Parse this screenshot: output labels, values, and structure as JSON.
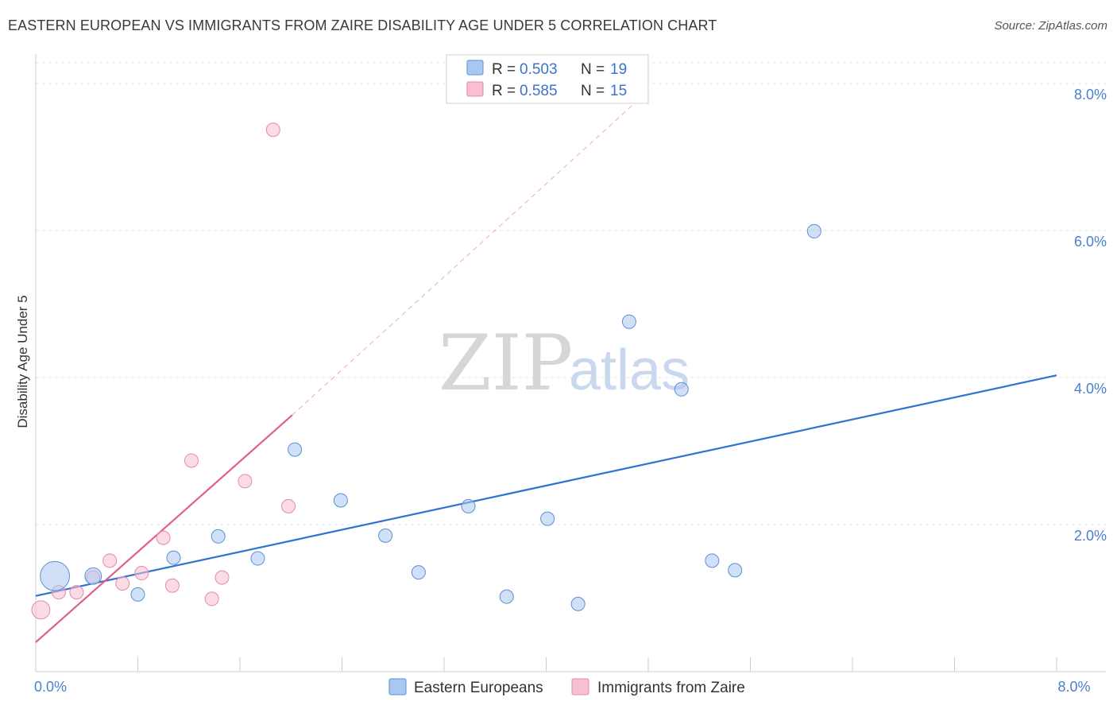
{
  "header": {
    "title": "EASTERN EUROPEAN VS IMMIGRANTS FROM ZAIRE DISABILITY AGE UNDER 5 CORRELATION CHART",
    "source": "Source: ZipAtlas.com"
  },
  "watermark": {
    "zip": "ZIP",
    "atlas": "atlas"
  },
  "chart_data": {
    "type": "scatter",
    "title": "EASTERN EUROPEAN VS IMMIGRANTS FROM ZAIRE DISABILITY AGE UNDER 5 CORRELATION CHART",
    "xlabel": "",
    "ylabel": "Disability Age Under 5",
    "xlim": [
      0,
      8
    ],
    "ylim": [
      0,
      8.4
    ],
    "y_ticks": [
      {
        "value": 2,
        "label": "2.0%"
      },
      {
        "value": 4,
        "label": "4.0%"
      },
      {
        "value": 6,
        "label": "6.0%"
      },
      {
        "value": 8,
        "label": "8.0%"
      }
    ],
    "x_tick_labels": [
      {
        "value": 0,
        "label": "0.0%"
      },
      {
        "value": 8,
        "label": "8.0%"
      }
    ],
    "x_minor_ticks": [
      0.8,
      1.6,
      2.4,
      3.2,
      4.0,
      4.8,
      5.6,
      6.4,
      7.2,
      8.0
    ],
    "series": [
      {
        "name": "Eastern Europeans",
        "color": "#a9c8f0",
        "edge": "#5b8fd8",
        "line_color": "#2f72cf",
        "r": "0.503",
        "n": "19",
        "points": [
          {
            "x": 0.15,
            "y": 1.3,
            "size": 3
          },
          {
            "x": 0.45,
            "y": 1.3,
            "size": 1.5
          },
          {
            "x": 0.8,
            "y": 1.05,
            "size": 1
          },
          {
            "x": 1.08,
            "y": 1.55,
            "size": 1
          },
          {
            "x": 1.43,
            "y": 1.84,
            "size": 1
          },
          {
            "x": 1.74,
            "y": 1.54,
            "size": 1
          },
          {
            "x": 2.03,
            "y": 3.02,
            "size": 1
          },
          {
            "x": 2.39,
            "y": 2.33,
            "size": 1
          },
          {
            "x": 2.74,
            "y": 1.85,
            "size": 1
          },
          {
            "x": 3.0,
            "y": 1.35,
            "size": 1
          },
          {
            "x": 3.39,
            "y": 2.25,
            "size": 1
          },
          {
            "x": 3.69,
            "y": 1.02,
            "size": 1
          },
          {
            "x": 4.01,
            "y": 2.08,
            "size": 1
          },
          {
            "x": 4.25,
            "y": 0.92,
            "size": 1
          },
          {
            "x": 4.65,
            "y": 4.76,
            "size": 1
          },
          {
            "x": 5.06,
            "y": 3.84,
            "size": 1
          },
          {
            "x": 5.3,
            "y": 1.51,
            "size": 1
          },
          {
            "x": 5.48,
            "y": 1.38,
            "size": 1
          },
          {
            "x": 6.1,
            "y": 5.99,
            "size": 1
          }
        ],
        "trend": {
          "x1": 0,
          "y1": 1.03,
          "x2": 8.0,
          "y2": 4.03
        }
      },
      {
        "name": "Immigrants from Zaire",
        "color": "#f7bfd0",
        "edge": "#e48aa8",
        "line_color": "#e0608a",
        "r": "0.585",
        "n": "15",
        "points": [
          {
            "x": 0.04,
            "y": 0.84,
            "size": 1.8
          },
          {
            "x": 0.18,
            "y": 1.08,
            "size": 1
          },
          {
            "x": 0.32,
            "y": 1.08,
            "size": 1
          },
          {
            "x": 0.45,
            "y": 1.28,
            "size": 1
          },
          {
            "x": 0.58,
            "y": 1.51,
            "size": 1
          },
          {
            "x": 0.68,
            "y": 1.2,
            "size": 1
          },
          {
            "x": 0.83,
            "y": 1.34,
            "size": 1
          },
          {
            "x": 1.0,
            "y": 1.82,
            "size": 1
          },
          {
            "x": 1.07,
            "y": 1.17,
            "size": 1
          },
          {
            "x": 1.22,
            "y": 2.87,
            "size": 1
          },
          {
            "x": 1.38,
            "y": 0.99,
            "size": 1
          },
          {
            "x": 1.46,
            "y": 1.28,
            "size": 1
          },
          {
            "x": 1.64,
            "y": 2.59,
            "size": 1
          },
          {
            "x": 1.86,
            "y": 7.37,
            "size": 1
          },
          {
            "x": 1.98,
            "y": 2.25,
            "size": 1
          }
        ],
        "trend": {
          "x1": 0,
          "y1": 0.4,
          "x2": 2.01,
          "y2": 3.49
        },
        "trend_dashed": {
          "x1": 2.01,
          "y1": 3.49,
          "x2": 4.8,
          "y2": 7.9
        }
      }
    ],
    "legend_placement": "top-center",
    "grid": true
  }
}
